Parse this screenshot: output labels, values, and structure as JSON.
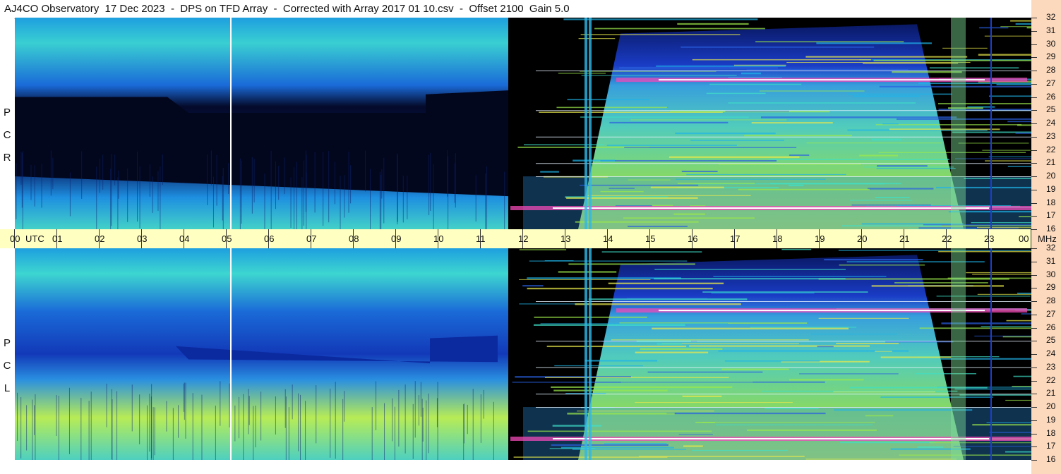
{
  "title": "AJ4CO Observatory  17 Dec 2023  -  DPS on TFD Array  -  Corrected with Array 2017 01 10.csv  -  Offset 2100  Gain 5.0",
  "colors": {
    "background": "#000000",
    "low": "#1b3fd0",
    "mid": "#1fb4e8",
    "high": "#9be84a",
    "peak": "#f04ab8",
    "saturated": "#ffffff",
    "time_band": "#ffffc2",
    "freq_panel": "#fcd9bd"
  },
  "chart_data": [
    {
      "type": "heatmap",
      "title": "RCP",
      "ylabel": "R C P",
      "x_ticks": [
        "00",
        "01",
        "02",
        "03",
        "04",
        "05",
        "06",
        "07",
        "08",
        "09",
        "10",
        "11",
        "12",
        "13",
        "14",
        "15",
        "16",
        "17",
        "18",
        "19",
        "20",
        "21",
        "22",
        "23",
        "00"
      ],
      "x_unit": "UTC",
      "xlim_hours": [
        0,
        24
      ],
      "y_ticks": [
        16,
        17,
        18,
        19,
        20,
        21,
        22,
        23,
        24,
        25,
        26,
        27,
        28,
        29,
        30,
        31,
        32
      ],
      "y_unit": "MHz",
      "ylim": [
        16,
        32
      ],
      "features": [
        {
          "name": "solar_day_emission",
          "start_hour": 12.0,
          "end_hour": 23.2
        },
        {
          "name": "interference_band",
          "freq_mhz": 27.3,
          "start_hour": 14.2,
          "end_hour": 23.9
        },
        {
          "name": "interference_band",
          "freq_mhz": 17.6,
          "start_hour": 11.7,
          "end_hour": 24.0
        },
        {
          "name": "vertical_line",
          "hour": 5.1
        },
        {
          "name": "vertical_line",
          "hour": 23.05
        }
      ]
    },
    {
      "type": "heatmap",
      "title": "LCP",
      "ylabel": "L C P",
      "x_ticks": [
        "00",
        "01",
        "02",
        "03",
        "04",
        "05",
        "06",
        "07",
        "08",
        "09",
        "10",
        "11",
        "12",
        "13",
        "14",
        "15",
        "16",
        "17",
        "18",
        "19",
        "20",
        "21",
        "22",
        "23",
        "00"
      ],
      "x_unit": "UTC",
      "xlim_hours": [
        0,
        24
      ],
      "y_ticks": [
        16,
        17,
        18,
        19,
        20,
        21,
        22,
        23,
        24,
        25,
        26,
        27,
        28,
        29,
        30,
        31,
        32
      ],
      "y_unit": "MHz",
      "ylim": [
        16,
        32
      ],
      "features": [
        {
          "name": "solar_day_emission",
          "start_hour": 12.0,
          "end_hour": 23.2
        },
        {
          "name": "interference_band",
          "freq_mhz": 27.3,
          "start_hour": 14.2,
          "end_hour": 23.9
        },
        {
          "name": "interference_band",
          "freq_mhz": 17.6,
          "start_hour": 11.7,
          "end_hour": 24.0
        },
        {
          "name": "vertical_line",
          "hour": 5.1
        },
        {
          "name": "vertical_line",
          "hour": 23.05
        }
      ]
    }
  ]
}
